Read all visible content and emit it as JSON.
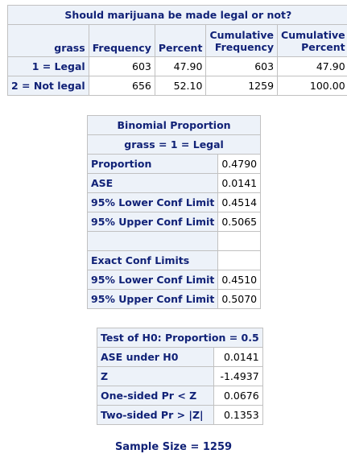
{
  "freq": {
    "title": "Should marijuana be made legal or not?",
    "headers": {
      "grass": "grass",
      "frequency": "Frequency",
      "percent": "Percent",
      "cum_freq_1": "Cumulative",
      "cum_freq_2": "Frequency",
      "cum_pct_1": "Cumulative",
      "cum_pct_2": "Percent"
    },
    "rows": [
      {
        "label": "1 = Legal",
        "frequency": "603",
        "percent": "47.90",
        "cum_freq": "603",
        "cum_pct": "47.90"
      },
      {
        "label": "2 = Not legal",
        "frequency": "656",
        "percent": "52.10",
        "cum_freq": "1259",
        "cum_pct": "100.00"
      }
    ]
  },
  "binomial": {
    "title": "Binomial Proportion",
    "subtitle": "grass = 1 = Legal",
    "rows": [
      {
        "label": "Proportion",
        "value": "0.4790"
      },
      {
        "label": "ASE",
        "value": "0.0141"
      },
      {
        "label": "95% Lower Conf Limit",
        "value": "0.4514"
      },
      {
        "label": "95% Upper Conf Limit",
        "value": "0.5065"
      }
    ],
    "exact_label": "Exact Conf Limits",
    "exact_rows": [
      {
        "label": "95% Lower Conf Limit",
        "value": "0.4510"
      },
      {
        "label": "95% Upper Conf Limit",
        "value": "0.5070"
      }
    ]
  },
  "test": {
    "title": "Test of H0: Proportion = 0.5",
    "rows": [
      {
        "label": "ASE under H0",
        "value": "0.0141"
      },
      {
        "label": "Z",
        "value": "-1.4937"
      },
      {
        "label": "One-sided Pr < Z",
        "value": "0.0676"
      },
      {
        "label": "Two-sided Pr > |Z|",
        "value": "0.1353"
      }
    ]
  },
  "sample_size": "Sample Size = 1259"
}
